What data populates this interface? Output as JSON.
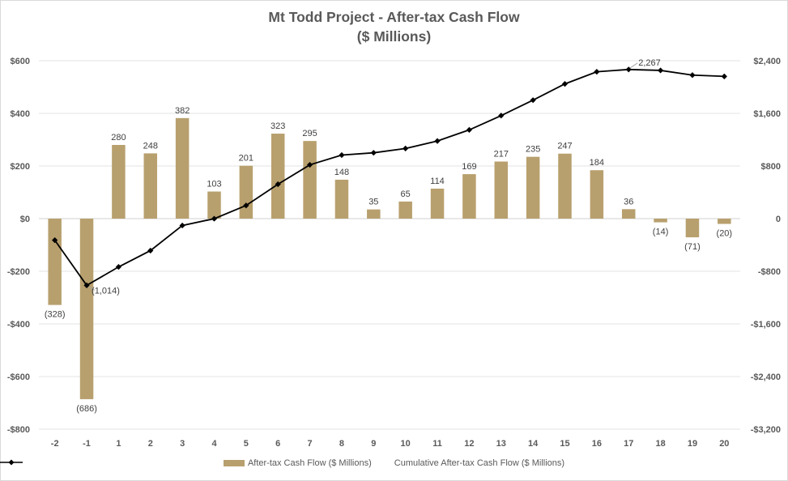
{
  "chart_data": {
    "type": "bar+line",
    "title": "Mt Todd Project - After-tax Cash Flow",
    "subtitle": "($ Millions)",
    "categories": [
      "-2",
      "-1",
      "1",
      "2",
      "3",
      "4",
      "5",
      "6",
      "7",
      "8",
      "9",
      "10",
      "11",
      "12",
      "13",
      "14",
      "15",
      "16",
      "17",
      "18",
      "19",
      "20"
    ],
    "series": [
      {
        "name": "After-tax Cash Flow ($ Millions)",
        "type": "bar",
        "axis": "left",
        "color": "#b8a06e",
        "values": [
          -328,
          -686,
          280,
          248,
          382,
          103,
          201,
          323,
          295,
          148,
          35,
          65,
          114,
          169,
          217,
          235,
          247,
          184,
          36,
          -14,
          -71,
          -20
        ],
        "labels": [
          "(328)",
          "(686)",
          "280",
          "248",
          "382",
          "103",
          "201",
          "323",
          "295",
          "148",
          "35",
          "65",
          "114",
          "169",
          "217",
          "235",
          "247",
          "184",
          "36",
          "(14)",
          "(71)",
          "(20)"
        ]
      },
      {
        "name": "Cumulative After-tax Cash Flow ($ Millions)",
        "type": "line",
        "axis": "right",
        "color": "#000000",
        "values": [
          -328,
          -1014,
          -734,
          -486,
          -104,
          -1,
          200,
          523,
          818,
          966,
          1001,
          1066,
          1180,
          1349,
          1566,
          1801,
          2048,
          2232,
          2267,
          2253,
          2182,
          2162
        ],
        "point_labels": [
          {
            "index": 1,
            "text": "(1,014)"
          },
          {
            "index": 18,
            "text": "2,267"
          }
        ]
      }
    ],
    "y_left": {
      "range": [
        -800,
        600
      ],
      "ticks": [
        600,
        400,
        200,
        0,
        -200,
        -400,
        -600,
        -800
      ],
      "tick_labels": [
        "$600",
        "$400",
        "$200",
        "$0",
        "-$200",
        "-$400",
        "-$600",
        "-$800"
      ]
    },
    "y_right": {
      "range": [
        -3200,
        2400
      ],
      "ticks": [
        2400,
        1600,
        800,
        0,
        -800,
        -1600,
        -2400,
        -3200
      ],
      "tick_labels": [
        "$2,400",
        "$1,600",
        "$800",
        "0",
        "-$800",
        "-$1,600",
        "-$2,400",
        "-$3,200"
      ]
    },
    "grid": true,
    "legend": "bottom"
  }
}
